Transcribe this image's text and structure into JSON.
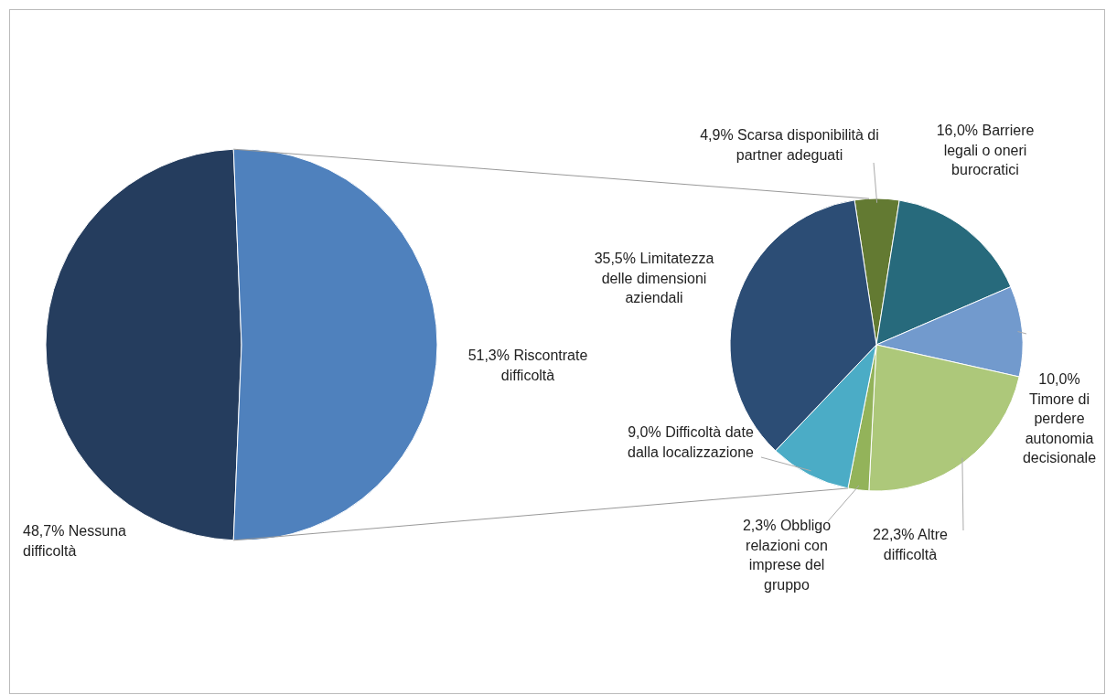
{
  "chart_data": [
    {
      "type": "pie",
      "categories": [
        "Nessuna difficoltà",
        "Riscontrate difficoltà"
      ],
      "values": [
        48.7,
        51.3
      ],
      "value_labels": [
        "48,7%",
        "51,3%"
      ],
      "colors": [
        "#253d5e",
        "#4f81bd"
      ]
    },
    {
      "type": "pie",
      "categories": [
        "Scarsa disponibilità di partner adeguati",
        "Barriere legali o oneri burocratici",
        "Timore di perdere autonomia decisionale",
        "Altre difficoltà",
        "Obbligo relazioni con imprese del gruppo",
        "Difficoltà date dalla localizzazione",
        "Limitatezza delle dimensioni aziendali"
      ],
      "values": [
        4.9,
        16.0,
        10.0,
        22.3,
        2.3,
        9.0,
        35.5
      ],
      "value_labels": [
        "4,9%",
        "16,0%",
        "10,0%",
        "22,3%",
        "2,3%",
        "9,0%",
        "35,5%"
      ],
      "colors": [
        "#637a32",
        "#276a7c",
        "#729acd",
        "#adc87a",
        "#93b35a",
        "#4bacc6",
        "#2c4d75"
      ]
    }
  ]
}
